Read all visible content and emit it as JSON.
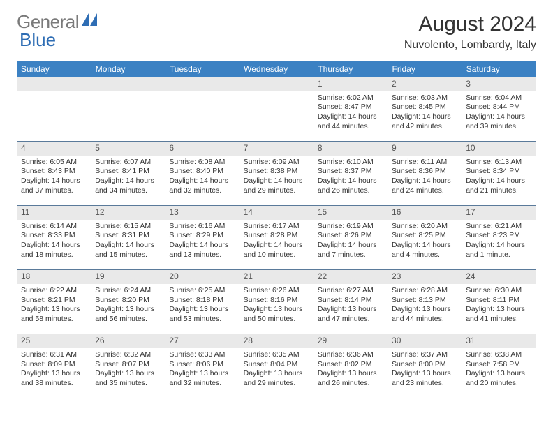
{
  "brand": {
    "gray": "General",
    "blue": "Blue"
  },
  "title": "August 2024",
  "location": "Nuvolento, Lombardy, Italy",
  "colors": {
    "header_bg": "#3b81c3",
    "daynum_bg": "#e9e9e9",
    "row_border": "#5a7a9a",
    "text": "#333333",
    "logo_gray": "#7a7a7a",
    "logo_blue": "#2e6db4"
  },
  "typography": {
    "title_fontsize": 30,
    "location_fontsize": 16,
    "header_fontsize": 12,
    "daynum_fontsize": 12,
    "cell_fontsize": 10.5
  },
  "weekdays": [
    "Sunday",
    "Monday",
    "Tuesday",
    "Wednesday",
    "Thursday",
    "Friday",
    "Saturday"
  ],
  "weeks": [
    {
      "nums": [
        "",
        "",
        "",
        "",
        "1",
        "2",
        "3"
      ],
      "cells": [
        "",
        "",
        "",
        "",
        "Sunrise: 6:02 AM\nSunset: 8:47 PM\nDaylight: 14 hours and 44 minutes.",
        "Sunrise: 6:03 AM\nSunset: 8:45 PM\nDaylight: 14 hours and 42 minutes.",
        "Sunrise: 6:04 AM\nSunset: 8:44 PM\nDaylight: 14 hours and 39 minutes."
      ]
    },
    {
      "nums": [
        "4",
        "5",
        "6",
        "7",
        "8",
        "9",
        "10"
      ],
      "cells": [
        "Sunrise: 6:05 AM\nSunset: 8:43 PM\nDaylight: 14 hours and 37 minutes.",
        "Sunrise: 6:07 AM\nSunset: 8:41 PM\nDaylight: 14 hours and 34 minutes.",
        "Sunrise: 6:08 AM\nSunset: 8:40 PM\nDaylight: 14 hours and 32 minutes.",
        "Sunrise: 6:09 AM\nSunset: 8:38 PM\nDaylight: 14 hours and 29 minutes.",
        "Sunrise: 6:10 AM\nSunset: 8:37 PM\nDaylight: 14 hours and 26 minutes.",
        "Sunrise: 6:11 AM\nSunset: 8:36 PM\nDaylight: 14 hours and 24 minutes.",
        "Sunrise: 6:13 AM\nSunset: 8:34 PM\nDaylight: 14 hours and 21 minutes."
      ]
    },
    {
      "nums": [
        "11",
        "12",
        "13",
        "14",
        "15",
        "16",
        "17"
      ],
      "cells": [
        "Sunrise: 6:14 AM\nSunset: 8:33 PM\nDaylight: 14 hours and 18 minutes.",
        "Sunrise: 6:15 AM\nSunset: 8:31 PM\nDaylight: 14 hours and 15 minutes.",
        "Sunrise: 6:16 AM\nSunset: 8:29 PM\nDaylight: 14 hours and 13 minutes.",
        "Sunrise: 6:17 AM\nSunset: 8:28 PM\nDaylight: 14 hours and 10 minutes.",
        "Sunrise: 6:19 AM\nSunset: 8:26 PM\nDaylight: 14 hours and 7 minutes.",
        "Sunrise: 6:20 AM\nSunset: 8:25 PM\nDaylight: 14 hours and 4 minutes.",
        "Sunrise: 6:21 AM\nSunset: 8:23 PM\nDaylight: 14 hours and 1 minute."
      ]
    },
    {
      "nums": [
        "18",
        "19",
        "20",
        "21",
        "22",
        "23",
        "24"
      ],
      "cells": [
        "Sunrise: 6:22 AM\nSunset: 8:21 PM\nDaylight: 13 hours and 58 minutes.",
        "Sunrise: 6:24 AM\nSunset: 8:20 PM\nDaylight: 13 hours and 56 minutes.",
        "Sunrise: 6:25 AM\nSunset: 8:18 PM\nDaylight: 13 hours and 53 minutes.",
        "Sunrise: 6:26 AM\nSunset: 8:16 PM\nDaylight: 13 hours and 50 minutes.",
        "Sunrise: 6:27 AM\nSunset: 8:14 PM\nDaylight: 13 hours and 47 minutes.",
        "Sunrise: 6:28 AM\nSunset: 8:13 PM\nDaylight: 13 hours and 44 minutes.",
        "Sunrise: 6:30 AM\nSunset: 8:11 PM\nDaylight: 13 hours and 41 minutes."
      ]
    },
    {
      "nums": [
        "25",
        "26",
        "27",
        "28",
        "29",
        "30",
        "31"
      ],
      "cells": [
        "Sunrise: 6:31 AM\nSunset: 8:09 PM\nDaylight: 13 hours and 38 minutes.",
        "Sunrise: 6:32 AM\nSunset: 8:07 PM\nDaylight: 13 hours and 35 minutes.",
        "Sunrise: 6:33 AM\nSunset: 8:06 PM\nDaylight: 13 hours and 32 minutes.",
        "Sunrise: 6:35 AM\nSunset: 8:04 PM\nDaylight: 13 hours and 29 minutes.",
        "Sunrise: 6:36 AM\nSunset: 8:02 PM\nDaylight: 13 hours and 26 minutes.",
        "Sunrise: 6:37 AM\nSunset: 8:00 PM\nDaylight: 13 hours and 23 minutes.",
        "Sunrise: 6:38 AM\nSunset: 7:58 PM\nDaylight: 13 hours and 20 minutes."
      ]
    }
  ]
}
